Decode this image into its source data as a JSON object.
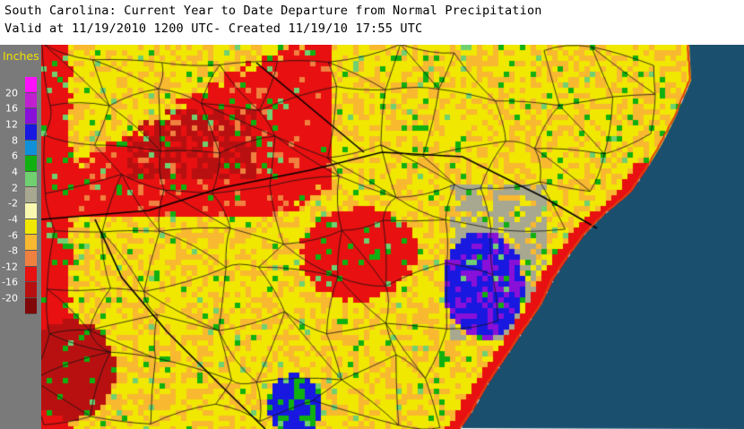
{
  "header": {
    "title": "South Carolina: Current Year to Date Departure from Normal Precipitation",
    "subtitle": "Valid at 11/19/2010 1200 UTC- Created 11/19/10 17:55 UTC"
  },
  "legend": {
    "title": "Inches",
    "tick_labels": [
      "20",
      "16",
      "12",
      "8",
      "6",
      "4",
      "2",
      "-2",
      "-4",
      "-6",
      "-8",
      "-12",
      "-16",
      "-20"
    ],
    "colors": [
      "#ff10ff",
      "#c020d0",
      "#8810d8",
      "#1818e0",
      "#1090d8",
      "#10b010",
      "#70d070",
      "#a8a890",
      "#f8f8b0",
      "#f0e800",
      "#f8b830",
      "#f08040",
      "#e81010",
      "#b81010",
      "#800808"
    ]
  },
  "map": {
    "ocean_color": "#1a4f6e",
    "coast_color": "#e04010"
  }
}
